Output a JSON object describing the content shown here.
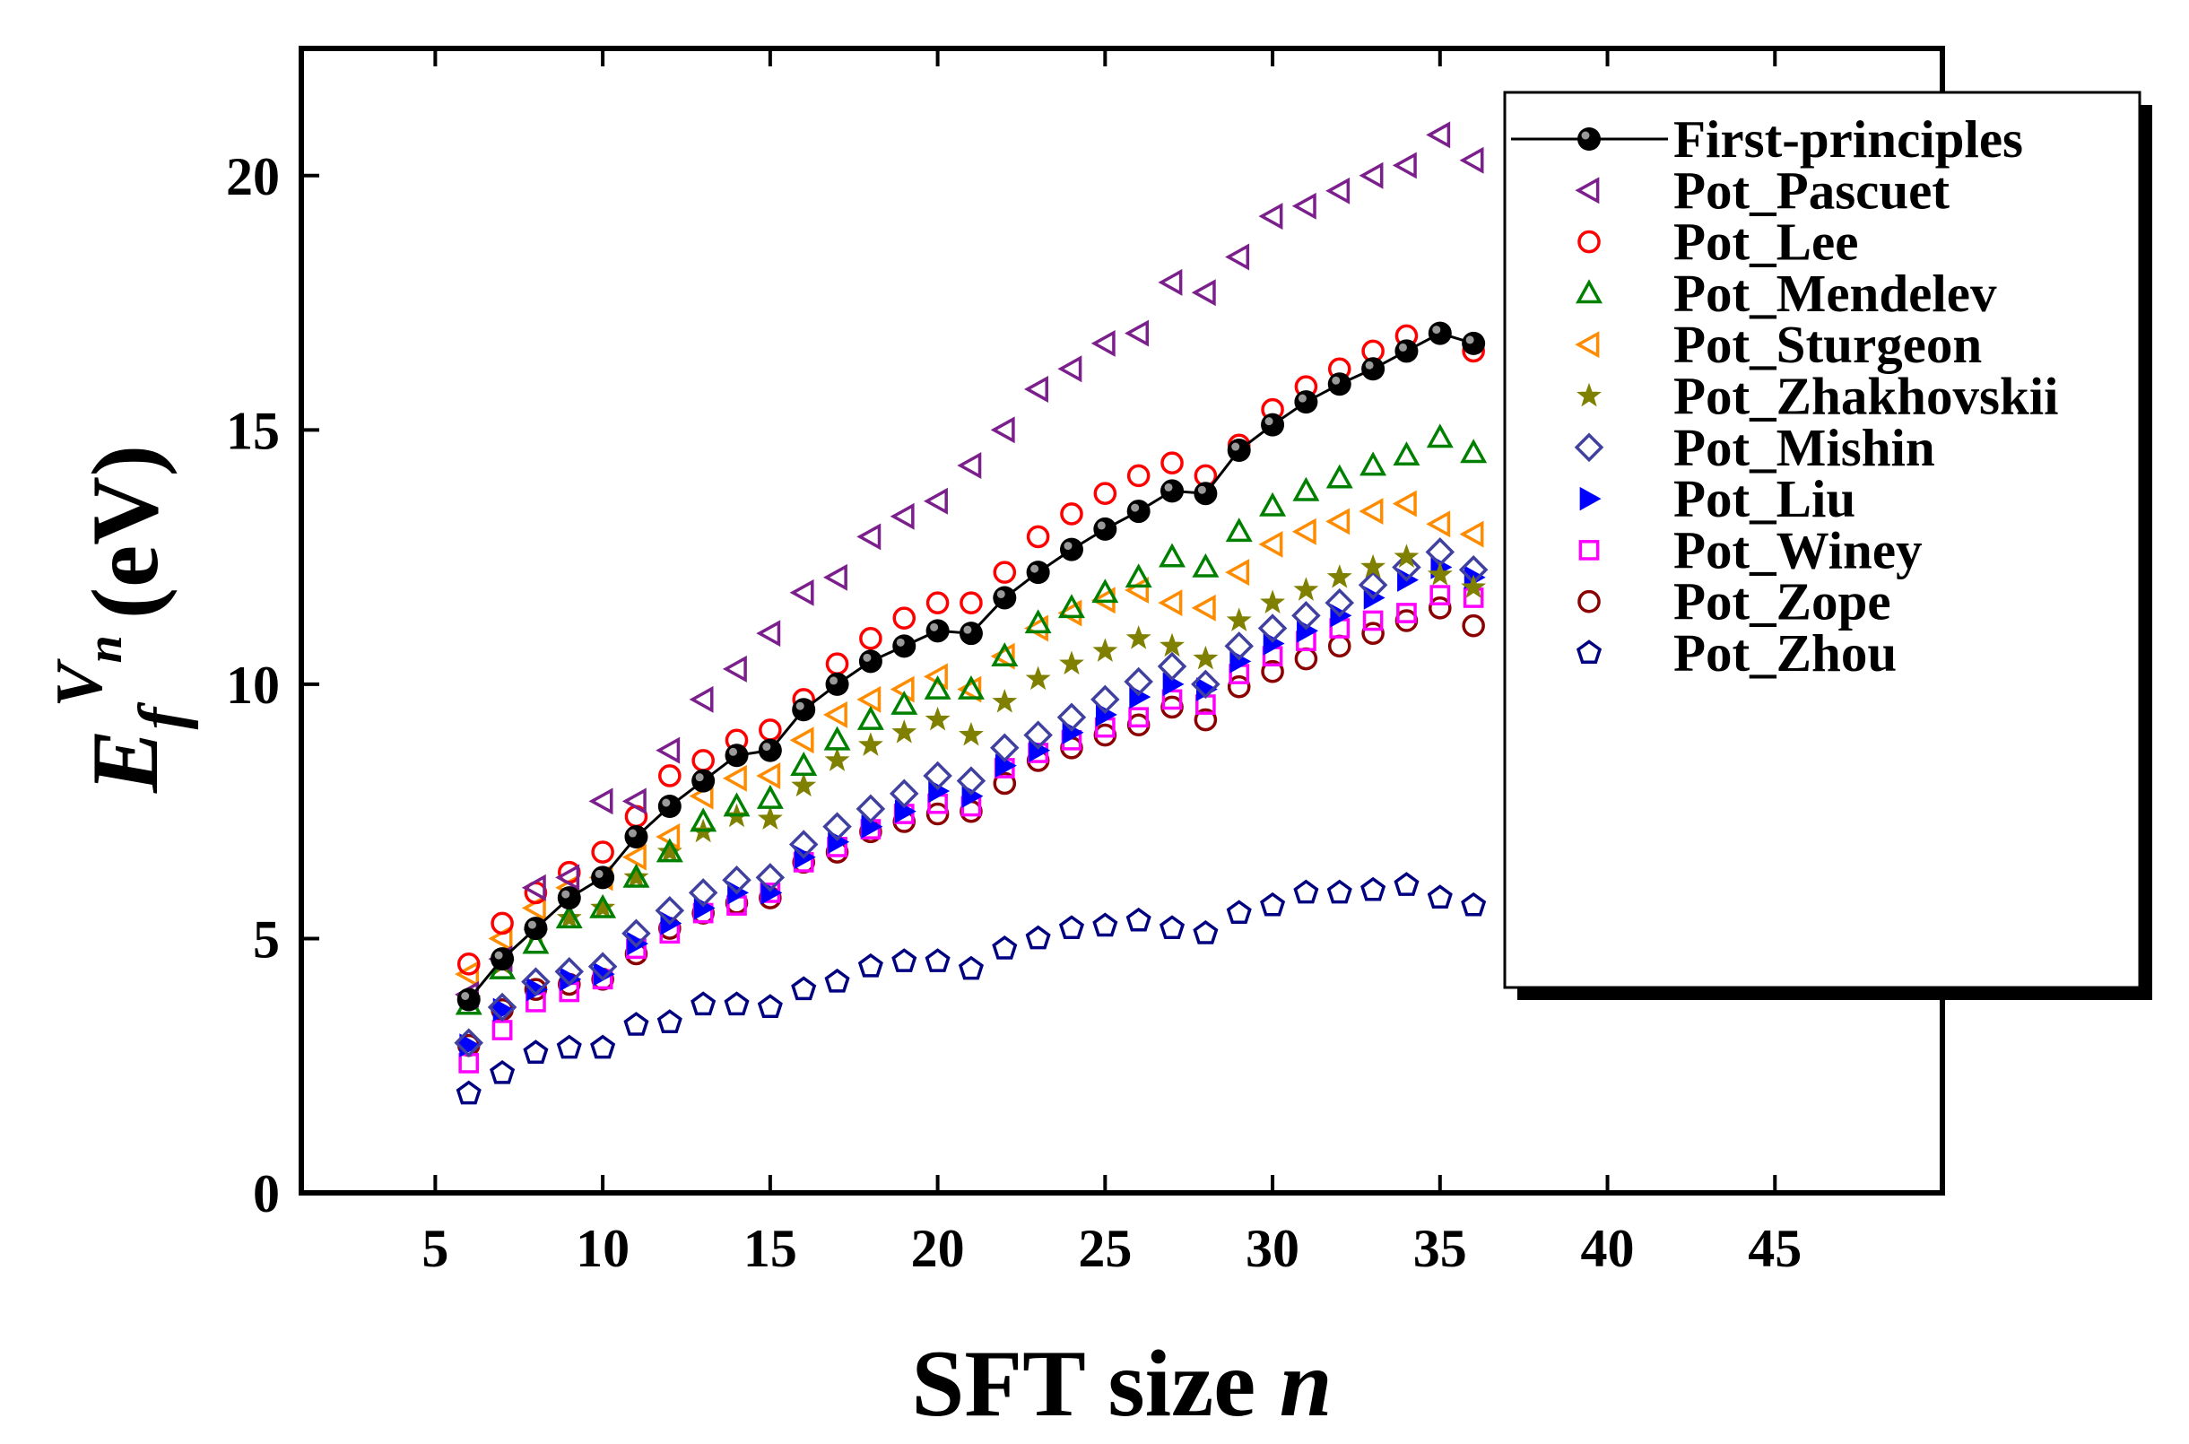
{
  "chart_data": {
    "type": "scatter",
    "title": "",
    "xlabel": "SFT size n",
    "xlabel_main": "SFT size ",
    "xlabel_var": "n",
    "ylabel": "E_f^{V_n} (eV)",
    "ylabel_E": "E",
    "ylabel_sub": "f",
    "ylabel_sup": "V",
    "ylabel_supsub": "n",
    "ylabel_unit": "(eV)",
    "xlim": [
      1,
      50
    ],
    "ylim": [
      0,
      22.5
    ],
    "xticks": [
      5,
      10,
      15,
      20,
      25,
      30,
      35,
      40,
      45
    ],
    "yticks": [
      0,
      5,
      10,
      15,
      20
    ],
    "legend_position": "top-right",
    "x": [
      6,
      7,
      8,
      9,
      10,
      11,
      12,
      13,
      14,
      15,
      16,
      17,
      18,
      19,
      20,
      21,
      22,
      23,
      24,
      25,
      26,
      27,
      28,
      29,
      30,
      31,
      32,
      33,
      34,
      35,
      36
    ],
    "series": [
      {
        "name": "First-principles",
        "marker": "ball-line",
        "color": "#000000",
        "values": [
          3.8,
          4.6,
          5.2,
          5.8,
          6.2,
          7.0,
          7.6,
          8.1,
          8.6,
          8.7,
          9.5,
          10.0,
          10.45,
          10.75,
          11.05,
          11.0,
          11.7,
          12.2,
          12.65,
          13.05,
          13.4,
          13.8,
          13.75,
          14.6,
          15.1,
          15.55,
          15.9,
          16.2,
          16.55,
          16.9,
          16.7
        ]
      },
      {
        "name": "Pot_Pascuet",
        "marker": "triangle-left",
        "color": "#7B1F8C",
        "values": [
          3.9,
          4.6,
          6.0,
          6.2,
          7.7,
          7.7,
          8.7,
          9.7,
          10.3,
          11.0,
          11.8,
          12.1,
          12.9,
          13.3,
          13.6,
          14.3,
          15.0,
          15.8,
          16.2,
          16.7,
          16.9,
          17.9,
          17.7,
          18.4,
          19.2,
          19.4,
          19.7,
          20.0,
          20.2,
          20.8,
          20.3
        ]
      },
      {
        "name": "Pot_Lee",
        "marker": "circle",
        "color": "#FF0000",
        "values": [
          4.5,
          5.3,
          5.9,
          6.3,
          6.7,
          7.4,
          8.2,
          8.5,
          8.9,
          9.1,
          9.7,
          10.4,
          10.9,
          11.3,
          11.6,
          11.6,
          12.2,
          12.9,
          13.35,
          13.75,
          14.1,
          14.35,
          14.1,
          14.7,
          15.4,
          15.85,
          16.2,
          16.55,
          16.85,
          16.9,
          16.55
        ]
      },
      {
        "name": "Pot_Mendelev",
        "marker": "triangle-up",
        "color": "#008000",
        "values": [
          3.7,
          4.4,
          4.9,
          5.4,
          5.6,
          6.2,
          6.7,
          7.3,
          7.6,
          7.75,
          8.4,
          8.9,
          9.3,
          9.6,
          9.9,
          9.9,
          10.55,
          11.2,
          11.5,
          11.8,
          12.1,
          12.5,
          12.3,
          13.0,
          13.5,
          13.8,
          14.05,
          14.3,
          14.5,
          14.85,
          14.55
        ]
      },
      {
        "name": "Pot_Sturgeon",
        "marker": "triangle-left",
        "color": "#FF8C00",
        "values": [
          4.3,
          5.0,
          5.6,
          6.0,
          6.2,
          6.6,
          7.0,
          7.8,
          8.15,
          8.2,
          8.9,
          9.4,
          9.7,
          9.9,
          10.15,
          9.9,
          10.55,
          11.1,
          11.4,
          11.65,
          11.85,
          11.6,
          11.5,
          12.2,
          12.75,
          13.0,
          13.2,
          13.4,
          13.55,
          13.15,
          12.95
        ]
      },
      {
        "name": "Pot_Zhakhovskii",
        "marker": "star",
        "color": "#808000",
        "values": [
          3.8,
          4.5,
          5.1,
          5.4,
          5.6,
          6.2,
          6.7,
          7.1,
          7.4,
          7.35,
          8.0,
          8.5,
          8.8,
          9.05,
          9.3,
          9.0,
          9.65,
          10.1,
          10.4,
          10.65,
          10.9,
          10.75,
          10.5,
          11.25,
          11.6,
          11.85,
          12.1,
          12.3,
          12.5,
          12.15,
          11.9
        ]
      },
      {
        "name": "Pot_Mishin",
        "marker": "diamond",
        "color": "#4040A0",
        "values": [
          2.95,
          3.65,
          4.15,
          4.35,
          4.45,
          5.1,
          5.55,
          5.9,
          6.15,
          6.2,
          6.85,
          7.2,
          7.55,
          7.85,
          8.2,
          8.1,
          8.75,
          9.0,
          9.35,
          9.7,
          10.05,
          10.35,
          10.0,
          10.75,
          11.1,
          11.35,
          11.6,
          11.95,
          12.3,
          12.6,
          12.25
        ]
      },
      {
        "name": "Pot_Liu",
        "marker": "triangle-right",
        "color": "#0000FF",
        "values": [
          2.9,
          3.6,
          4.0,
          4.2,
          4.3,
          4.9,
          5.3,
          5.6,
          5.9,
          5.9,
          6.6,
          6.9,
          7.2,
          7.5,
          7.9,
          7.8,
          8.4,
          8.7,
          9.05,
          9.4,
          9.75,
          10.0,
          9.9,
          10.45,
          10.8,
          11.05,
          11.35,
          11.7,
          12.05,
          12.3,
          12.1
        ]
      },
      {
        "name": "Pot_Winey",
        "marker": "square",
        "color": "#FF00FF",
        "values": [
          2.55,
          3.2,
          3.75,
          3.95,
          4.2,
          4.8,
          5.1,
          5.5,
          5.65,
          5.9,
          6.5,
          6.8,
          7.15,
          7.45,
          7.65,
          7.6,
          8.35,
          8.65,
          8.9,
          9.15,
          9.35,
          9.7,
          9.6,
          10.2,
          10.55,
          10.85,
          11.1,
          11.25,
          11.4,
          11.75,
          11.7
        ]
      },
      {
        "name": "Pot_Zope",
        "marker": "circle",
        "color": "#8B0000",
        "values": [
          2.9,
          3.6,
          4.0,
          4.1,
          4.2,
          4.7,
          5.2,
          5.5,
          5.7,
          5.8,
          6.5,
          6.7,
          7.1,
          7.3,
          7.45,
          7.5,
          8.05,
          8.5,
          8.75,
          9.0,
          9.2,
          9.55,
          9.3,
          9.95,
          10.25,
          10.5,
          10.75,
          11.0,
          11.25,
          11.5,
          11.15
        ]
      },
      {
        "name": "Pot_Zhou",
        "marker": "pentagon",
        "color": "#000080",
        "values": [
          1.95,
          2.35,
          2.75,
          2.85,
          2.85,
          3.3,
          3.35,
          3.7,
          3.7,
          3.65,
          4.0,
          4.15,
          4.45,
          4.55,
          4.55,
          4.4,
          4.8,
          5.0,
          5.2,
          5.25,
          5.35,
          5.2,
          5.1,
          5.5,
          5.65,
          5.9,
          5.9,
          5.95,
          6.05,
          5.8,
          5.65
        ]
      }
    ]
  }
}
